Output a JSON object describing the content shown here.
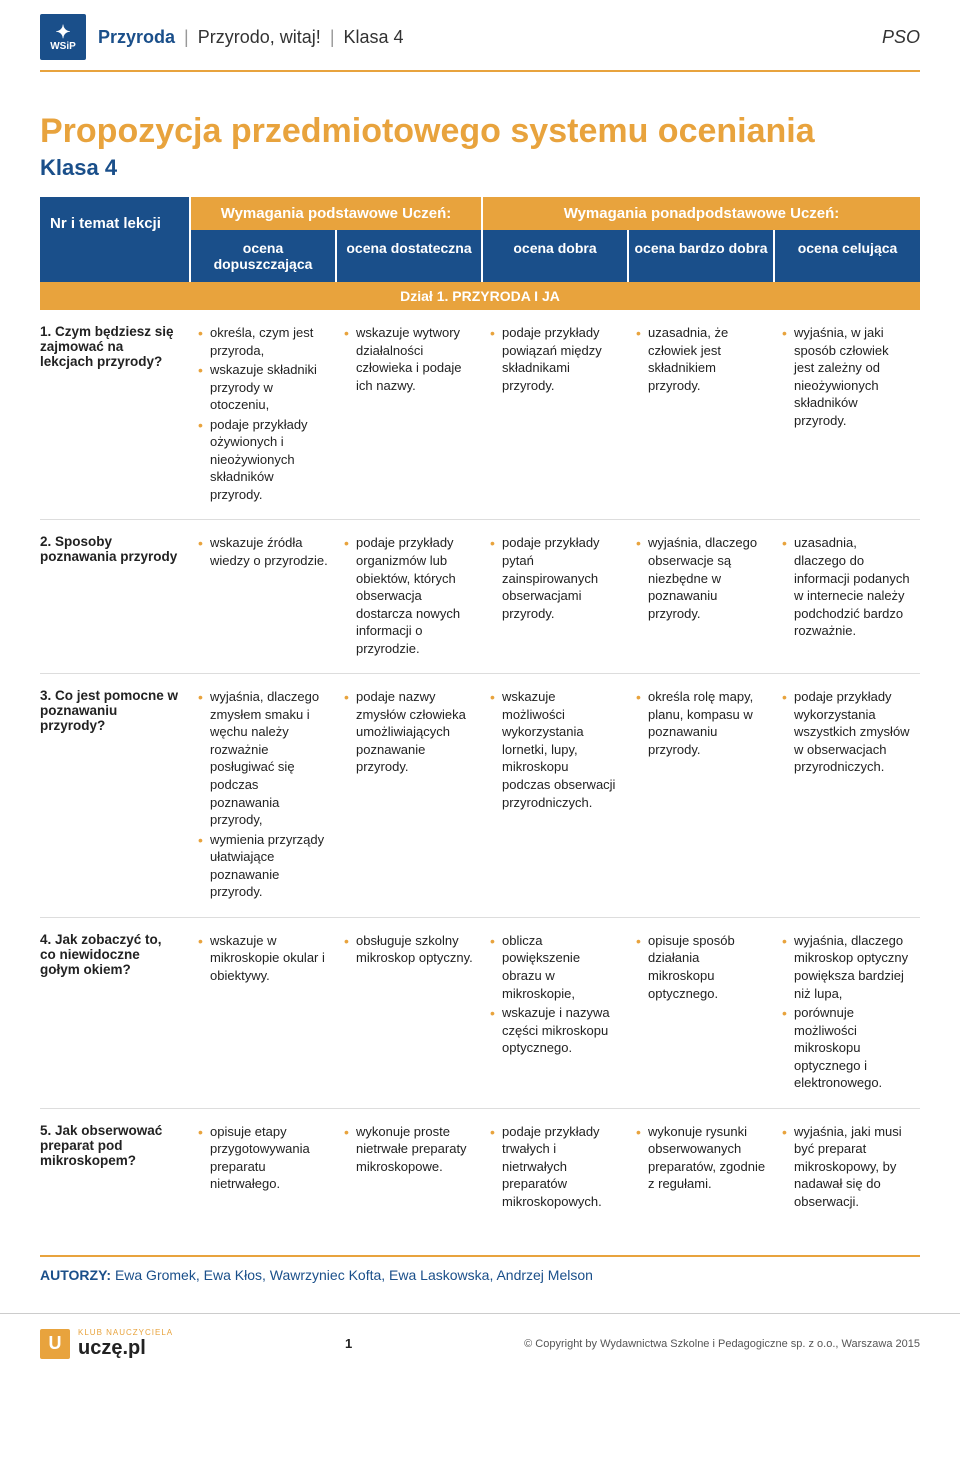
{
  "colors": {
    "blue": "#1a4f8a",
    "orange": "#e8a33d",
    "grid": "#dddddd",
    "bg": "#ffffff"
  },
  "header": {
    "logo_text": "WSiP",
    "breadcrumb": {
      "a": "Przyroda",
      "b": "Przyrodo, witaj!",
      "c": "Klasa 4"
    },
    "pso": "PSO"
  },
  "title": {
    "main": "Propozycja przedmiotowego systemu oceniania",
    "sub": "Klasa 4"
  },
  "table": {
    "corner": "Nr i temat lekcji",
    "group_basic": "Wymagania podstawowe\nUczeń:",
    "group_extra": "Wymagania ponadpodstawowe\nUczeń:",
    "cols": {
      "c1": "ocena dopuszczająca",
      "c2": "ocena dostateczna",
      "c3": "ocena dobra",
      "c4": "ocena bardzo dobra",
      "c5": "ocena celująca"
    },
    "section": "Dział 1. PRZYRODA I JA",
    "rows": [
      {
        "topic": "1. Czym będziesz się zajmować na lekcjach przyrody?",
        "c1": [
          "określa, czym jest przyroda,",
          "wskazuje składniki przyrody w otoczeniu,",
          "podaje przykłady ożywionych i nieożywionych składników przyrody."
        ],
        "c2": [
          "wskazuje wytwory działalności człowieka i podaje ich nazwy."
        ],
        "c3": [
          "podaje przykłady powiązań między składnikami przyrody."
        ],
        "c4": [
          "uzasadnia, że człowiek jest składnikiem przyrody."
        ],
        "c5": [
          "wyjaśnia, w jaki sposób człowiek jest zależny od nieożywionych składników przyrody."
        ]
      },
      {
        "topic": "2. Sposoby poznawania przyrody",
        "c1": [
          "wskazuje źródła wiedzy o przyrodzie."
        ],
        "c2": [
          "podaje przykłady organizmów lub obiektów, których obserwacja dostarcza nowych informacji o przyrodzie."
        ],
        "c3": [
          "podaje przykłady pytań zainspirowanych obserwacjami przyrody."
        ],
        "c4": [
          "wyjaśnia, dlaczego obserwacje są niezbędne w poznawaniu przyrody."
        ],
        "c5": [
          "uzasadnia, dlaczego do informacji podanych w internecie należy podchodzić bardzo rozważnie."
        ]
      },
      {
        "topic": "3. Co jest pomocne w poznawaniu przyrody?",
        "c1": [
          "wyjaśnia, dlaczego zmysłem smaku i węchu należy rozważnie posługiwać się podczas poznawania przyrody,",
          "wymienia przyrządy ułatwiające poznawanie przyrody."
        ],
        "c2": [
          "podaje nazwy zmysłów człowieka umożliwiających poznawanie przyrody."
        ],
        "c3": [
          "wskazuje możliwości wykorzystania lornetki, lupy, mikroskopu podczas obserwacji przyrodniczych."
        ],
        "c4": [
          "określa rolę mapy, planu, kompasu w poznawaniu przyrody."
        ],
        "c5": [
          "podaje przykłady wykorzystania wszystkich zmysłów w obserwacjach przyrodniczych."
        ]
      },
      {
        "topic": "4. Jak zobaczyć to, co niewidoczne gołym okiem?",
        "c1": [
          "wskazuje w mikroskopie okular i obiektywy."
        ],
        "c2": [
          "obsługuje szkolny mikroskop optyczny."
        ],
        "c3": [
          "oblicza powiększenie obrazu w mikroskopie,",
          "wskazuje i nazywa części mikroskopu optycznego."
        ],
        "c4": [
          "opisuje sposób działania mikroskopu optycznego."
        ],
        "c5": [
          "wyjaśnia, dlaczego mikroskop optyczny powiększa bardziej niż lupa,",
          "porównuje możliwości mikroskopu optycznego i elektronowego."
        ]
      },
      {
        "topic": "5. Jak obserwować preparat pod mikroskopem?",
        "c1": [
          "opisuje etapy przygotowywania preparatu nietrwałego."
        ],
        "c2": [
          "wykonuje proste nietrwałe preparaty mikroskopowe."
        ],
        "c3": [
          "podaje przykłady trwałych i nietrwałych preparatów mikroskopowych."
        ],
        "c4": [
          "wykonuje rysunki obserwowanych preparatów, zgodnie z regułami."
        ],
        "c5": [
          "wyjaśnia, jaki musi być preparat mikroskopowy, by nadawał się do obserwacji."
        ]
      }
    ]
  },
  "authors": {
    "label": "AUTORZY:",
    "names": "Ewa Gromek, Ewa Kłos, Wawrzyniec Kofta, Ewa Laskowska, Andrzej Melson"
  },
  "footer": {
    "klub": "KLUB NAUCZYCIELA",
    "brand": "uczę.pl",
    "page": "1",
    "copyright": "© Copyright by Wydawnictwa Szkolne i Pedagogiczne sp. z o.o., Warszawa 2015"
  }
}
